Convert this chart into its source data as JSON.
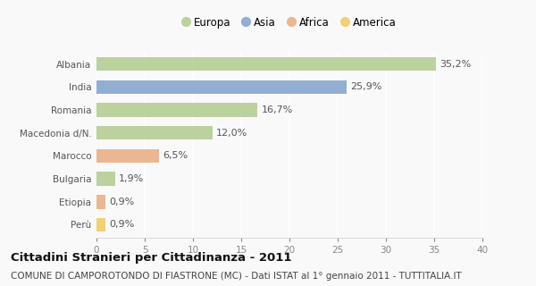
{
  "categories": [
    "Albania",
    "India",
    "Romania",
    "Macedonia d/N.",
    "Marocco",
    "Bulgaria",
    "Etiopia",
    "Perù"
  ],
  "values": [
    35.2,
    25.9,
    16.7,
    12.0,
    6.5,
    1.9,
    0.9,
    0.9
  ],
  "labels": [
    "35,2%",
    "25,9%",
    "16,7%",
    "12,0%",
    "6,5%",
    "1,9%",
    "0,9%",
    "0,9%"
  ],
  "colors": [
    "#aec98a",
    "#7b9ec7",
    "#aec98a",
    "#aec98a",
    "#e8a87c",
    "#aec98a",
    "#e8a87c",
    "#f0c85a"
  ],
  "legend": [
    {
      "label": "Europa",
      "color": "#aec98a"
    },
    {
      "label": "Asia",
      "color": "#7b9ec7"
    },
    {
      "label": "Africa",
      "color": "#e8a87c"
    },
    {
      "label": "America",
      "color": "#f0c85a"
    }
  ],
  "xlim": [
    0,
    40
  ],
  "xticks": [
    0,
    5,
    10,
    15,
    20,
    25,
    30,
    35,
    40
  ],
  "title": "Cittadini Stranieri per Cittadinanza - 2011",
  "subtitle": "COMUNE DI CAMPOROTONDO DI FIASTRONE (MC) - Dati ISTAT al 1° gennaio 2011 - TUTTITALIA.IT",
  "background_color": "#f9f9f9",
  "grid_color": "#ffffff",
  "bar_height": 0.6,
  "title_fontsize": 9.5,
  "subtitle_fontsize": 7.5,
  "label_fontsize": 8,
  "tick_fontsize": 7.5,
  "legend_fontsize": 8.5
}
